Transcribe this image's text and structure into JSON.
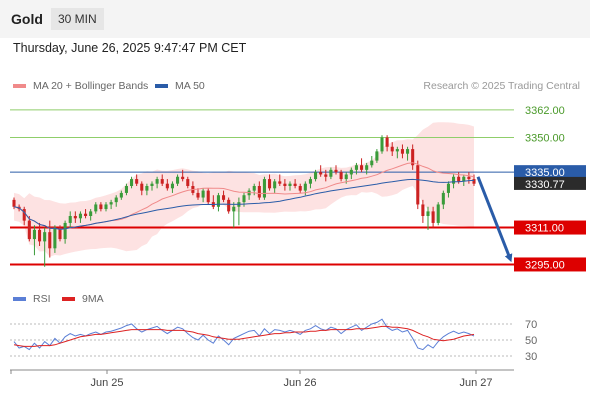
{
  "header": {
    "title": "Gold",
    "timeframe": "30 MIN",
    "datetime": "Thursday, June 26, 2025 9:47:47 PM CET",
    "credit": "Research © 2025 Trading Central"
  },
  "legend": {
    "ma20_label": "MA 20 + Bollinger Bands",
    "ma50_label": "MA 50",
    "rsi_label": "RSI",
    "rsi_ma_label": "9MA"
  },
  "colors": {
    "ma20": "#f08a8a",
    "bollinger_fill": "#fde2e2",
    "ma50": "#2a5ca8",
    "candle_up": "#3a9b3a",
    "candle_down": "#cc2222",
    "support": "#dd0000",
    "resistance": "#8fce6a",
    "pivot": "#2a5ca8",
    "arrow": "#2a5ca8",
    "rsi": "#5b7fd6",
    "rsi_ma": "#dd2222"
  },
  "chart_data": [
    {
      "type": "candlestick",
      "title": "Gold 30 MIN",
      "x_ticks": [
        "Jun 25",
        "Jun 26",
        "Jun 27"
      ],
      "ylim": [
        3290,
        3368
      ],
      "levels": [
        {
          "label": "3362.00",
          "value": 3362,
          "kind": "resistance"
        },
        {
          "label": "3350.00",
          "value": 3350,
          "kind": "resistance"
        },
        {
          "label": "3335.00",
          "value": 3335,
          "kind": "pivot"
        },
        {
          "label": "3311.00",
          "value": 3311,
          "kind": "support"
        },
        {
          "label": "3295.00",
          "value": 3295,
          "kind": "support"
        }
      ],
      "last_price": {
        "label": "3330.77",
        "value": 3330.77
      },
      "forecast_arrow": {
        "from": 3333,
        "to": 3295
      },
      "candles": [
        [
          3323,
          3324,
          3319,
          3320
        ],
        [
          3320,
          3321,
          3318,
          3319
        ],
        [
          3319,
          3320,
          3312,
          3314
        ],
        [
          3314,
          3316,
          3305,
          3306
        ],
        [
          3306,
          3312,
          3299,
          3310
        ],
        [
          3310,
          3313,
          3303,
          3305
        ],
        [
          3305,
          3311,
          3294,
          3309
        ],
        [
          3309,
          3314,
          3298,
          3302
        ],
        [
          3302,
          3312,
          3300,
          3311
        ],
        [
          3311,
          3312,
          3305,
          3306
        ],
        [
          3306,
          3314,
          3304,
          3313
        ],
        [
          3313,
          3318,
          3311,
          3316
        ],
        [
          3316,
          3318,
          3313,
          3315
        ],
        [
          3315,
          3318,
          3313,
          3317
        ],
        [
          3317,
          3319,
          3315,
          3316
        ],
        [
          3316,
          3319,
          3314,
          3318
        ],
        [
          3318,
          3322,
          3317,
          3321
        ],
        [
          3321,
          3322,
          3318,
          3319
        ],
        [
          3319,
          3322,
          3318,
          3321
        ],
        [
          3321,
          3323,
          3319,
          3322
        ],
        [
          3322,
          3325,
          3320,
          3324
        ],
        [
          3324,
          3327,
          3323,
          3326
        ],
        [
          3326,
          3330,
          3325,
          3329
        ],
        [
          3329,
          3333,
          3328,
          3332
        ],
        [
          3332,
          3334,
          3329,
          3330
        ],
        [
          3330,
          3331,
          3325,
          3327
        ],
        [
          3327,
          3330,
          3325,
          3329
        ],
        [
          3329,
          3331,
          3327,
          3330
        ],
        [
          3330,
          3333,
          3328,
          3332
        ],
        [
          3332,
          3334,
          3329,
          3330
        ],
        [
          3330,
          3332,
          3327,
          3328
        ],
        [
          3328,
          3331,
          3326,
          3330
        ],
        [
          3330,
          3334,
          3329,
          3333
        ],
        [
          3333,
          3336,
          3331,
          3332
        ],
        [
          3332,
          3333,
          3328,
          3329
        ],
        [
          3329,
          3331,
          3325,
          3326
        ],
        [
          3326,
          3328,
          3323,
          3324
        ],
        [
          3324,
          3328,
          3322,
          3327
        ],
        [
          3327,
          3328,
          3321,
          3322
        ],
        [
          3322,
          3325,
          3319,
          3320
        ],
        [
          3320,
          3326,
          3318,
          3325
        ],
        [
          3325,
          3327,
          3322,
          3323
        ],
        [
          3323,
          3324,
          3317,
          3318
        ],
        [
          3318,
          3322,
          3311,
          3320
        ],
        [
          3320,
          3324,
          3312,
          3322
        ],
        [
          3322,
          3326,
          3320,
          3325
        ],
        [
          3325,
          3328,
          3323,
          3327
        ],
        [
          3327,
          3330,
          3325,
          3329
        ],
        [
          3329,
          3331,
          3323,
          3324
        ],
        [
          3324,
          3333,
          3323,
          3332
        ],
        [
          3332,
          3334,
          3327,
          3328
        ],
        [
          3328,
          3332,
          3326,
          3331
        ],
        [
          3331,
          3334,
          3329,
          3330
        ],
        [
          3330,
          3332,
          3327,
          3329
        ],
        [
          3329,
          3331,
          3327,
          3330
        ],
        [
          3330,
          3332,
          3328,
          3329
        ],
        [
          3329,
          3330,
          3326,
          3327
        ],
        [
          3327,
          3331,
          3325,
          3330
        ],
        [
          3330,
          3333,
          3328,
          3332
        ],
        [
          3332,
          3336,
          3331,
          3335
        ],
        [
          3335,
          3338,
          3333,
          3334
        ],
        [
          3334,
          3336,
          3331,
          3333
        ],
        [
          3333,
          3337,
          3332,
          3336
        ],
        [
          3336,
          3338,
          3334,
          3335
        ],
        [
          3335,
          3336,
          3331,
          3332
        ],
        [
          3332,
          3335,
          3330,
          3334
        ],
        [
          3334,
          3337,
          3332,
          3336
        ],
        [
          3336,
          3339,
          3334,
          3338
        ],
        [
          3338,
          3341,
          3335,
          3336
        ],
        [
          3336,
          3339,
          3334,
          3338
        ],
        [
          3338,
          3342,
          3337,
          3340
        ],
        [
          3340,
          3345,
          3339,
          3344
        ],
        [
          3344,
          3351,
          3343,
          3350
        ],
        [
          3350,
          3351,
          3344,
          3346
        ],
        [
          3346,
          3348,
          3342,
          3344
        ],
        [
          3344,
          3346,
          3341,
          3345
        ],
        [
          3345,
          3347,
          3341,
          3343
        ],
        [
          3343,
          3346,
          3340,
          3345
        ],
        [
          3345,
          3347,
          3336,
          3338
        ],
        [
          3338,
          3340,
          3319,
          3321
        ],
        [
          3321,
          3323,
          3313,
          3316
        ],
        [
          3316,
          3320,
          3310,
          3318
        ],
        [
          3318,
          3320,
          3311,
          3313
        ],
        [
          3313,
          3322,
          3312,
          3321
        ],
        [
          3321,
          3327,
          3319,
          3326
        ],
        [
          3326,
          3331,
          3324,
          3330
        ],
        [
          3330,
          3334,
          3328,
          3333
        ],
        [
          3333,
          3335,
          3330,
          3331
        ],
        [
          3331,
          3334,
          3329,
          3333
        ],
        [
          3333,
          3335,
          3330,
          3332
        ],
        [
          3332,
          3334,
          3329,
          3330
        ]
      ]
    },
    {
      "type": "line",
      "title": "RSI",
      "y_ticks": [
        30,
        50,
        70
      ],
      "ylim": [
        20,
        80
      ],
      "series": [
        {
          "name": "RSI",
          "values": [
            48,
            40,
            42,
            38,
            46,
            40,
            48,
            43,
            52,
            46,
            54,
            58,
            55,
            57,
            55,
            58,
            60,
            57,
            60,
            61,
            63,
            65,
            68,
            70,
            64,
            60,
            63,
            65,
            67,
            62,
            58,
            62,
            66,
            64,
            58,
            53,
            50,
            56,
            50,
            46,
            55,
            50,
            44,
            52,
            55,
            58,
            61,
            62,
            55,
            64,
            58,
            63,
            62,
            60,
            62,
            60,
            57,
            62,
            64,
            68,
            64,
            62,
            66,
            64,
            58,
            63,
            66,
            69,
            62,
            66,
            70,
            72,
            76,
            66,
            62,
            64,
            60,
            62,
            52,
            40,
            38,
            44,
            40,
            48,
            54,
            58,
            61,
            58,
            60,
            58,
            55
          ]
        },
        {
          "name": "9MA",
          "values": [
            44,
            43,
            42,
            42,
            42,
            43,
            43,
            43,
            44,
            46,
            48,
            50,
            52,
            54,
            55,
            56,
            57,
            57,
            58,
            59,
            60,
            61,
            62,
            63,
            63,
            63,
            63,
            63,
            63,
            63,
            62,
            62,
            62,
            62,
            61,
            60,
            58,
            57,
            56,
            54,
            53,
            52,
            51,
            51,
            51,
            52,
            53,
            54,
            55,
            56,
            57,
            58,
            58,
            59,
            59,
            60,
            60,
            60,
            61,
            61,
            62,
            62,
            63,
            63,
            63,
            63,
            63,
            64,
            64,
            64,
            65,
            66,
            67,
            67,
            66,
            66,
            65,
            64,
            62,
            59,
            56,
            54,
            51,
            50,
            49,
            50,
            51,
            53,
            55,
            56,
            57
          ]
        }
      ]
    }
  ]
}
